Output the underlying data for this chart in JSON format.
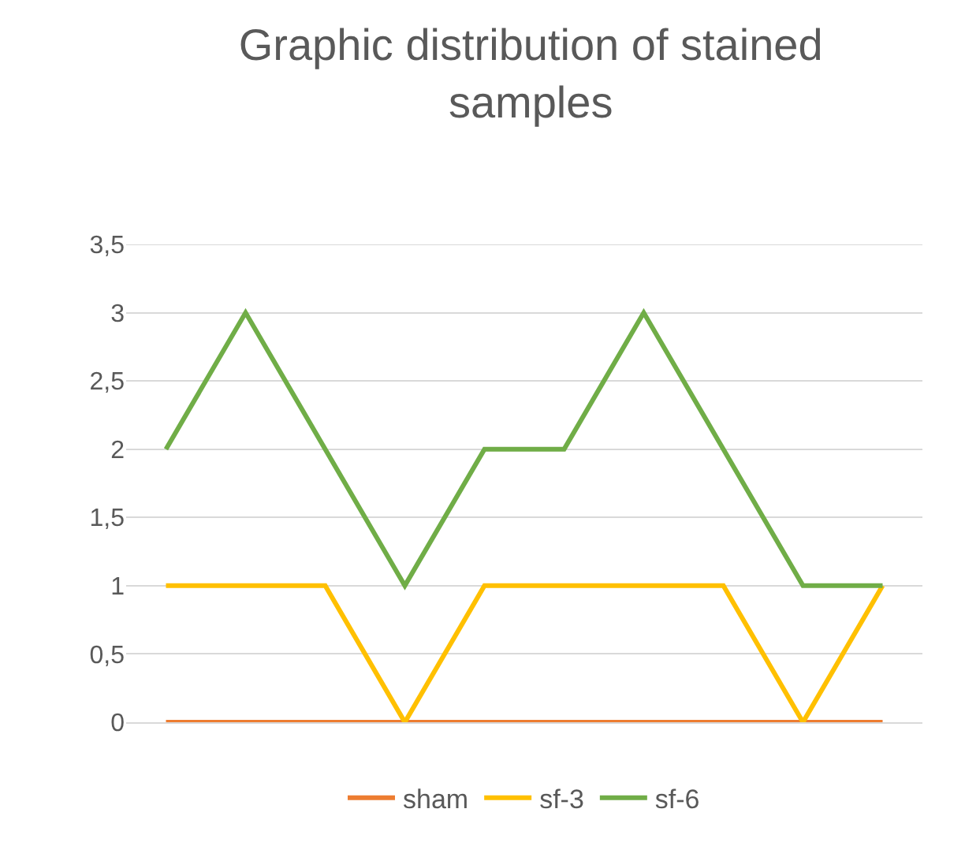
{
  "chart_data": {
    "type": "line",
    "title": "Graphic distribution of stained samples",
    "categories": [
      null,
      null,
      null,
      null,
      null,
      null,
      null,
      null,
      null,
      null
    ],
    "series": [
      {
        "name": "sham",
        "color": "#ed7d31",
        "values": [
          0,
          0,
          0,
          0,
          0,
          0,
          0,
          0,
          0,
          0
        ]
      },
      {
        "name": "sf-3",
        "color": "#ffc000",
        "values": [
          1,
          1,
          1,
          0,
          1,
          1,
          1,
          1,
          0,
          1
        ]
      },
      {
        "name": "sf-6",
        "color": "#70ad47",
        "values": [
          2,
          3,
          2,
          1,
          2,
          2,
          3,
          2,
          1,
          1
        ]
      }
    ],
    "ylim": [
      0,
      3.5
    ],
    "yticks": [
      0,
      {
        "value": 0.5,
        "label": "0,5"
      },
      1,
      {
        "value": 1.5,
        "label": "1,5"
      },
      2,
      {
        "value": 2.5,
        "label": "2,5"
      },
      3,
      {
        "value": 3.5,
        "label": "3,5"
      }
    ],
    "grid": "y",
    "legend": "bottom",
    "tick_labels": "y",
    "marker": "none",
    "line_style": "solid"
  }
}
